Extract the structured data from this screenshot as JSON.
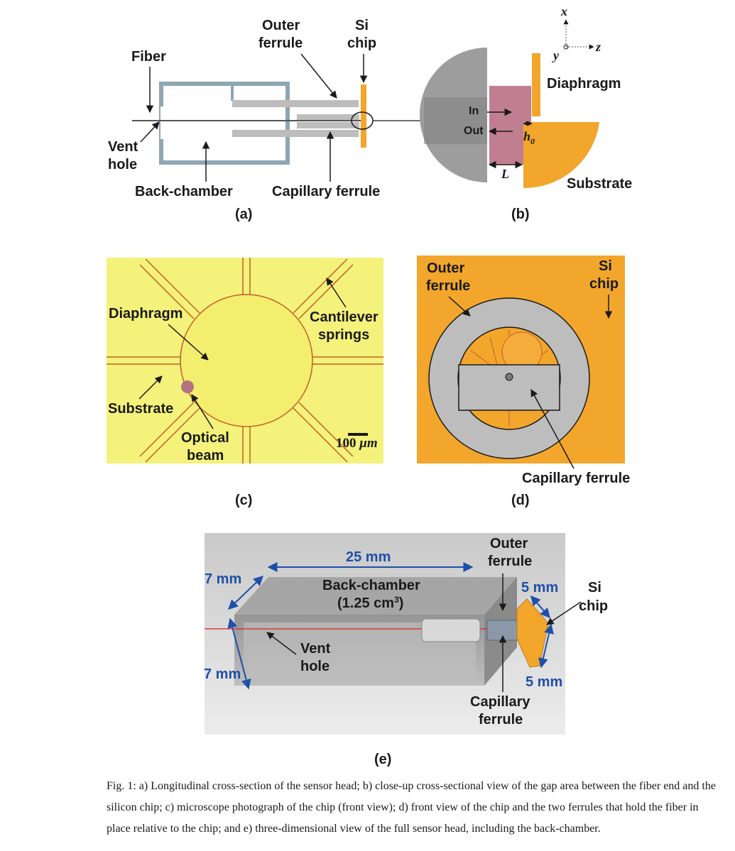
{
  "panel_a": {
    "fiber": "Fiber",
    "outer_ferrule": [
      "Outer",
      "ferrule"
    ],
    "si_chip": [
      "Si",
      "chip"
    ],
    "vent_hole": [
      "Vent",
      "hole"
    ],
    "back_chamber": "Back-chamber",
    "capillary_ferrule": "Capillary ferrule",
    "tag": "(a)"
  },
  "panel_b": {
    "axis_x": "x",
    "axis_y": "y",
    "axis_z": "z",
    "diaphragm": "Diaphragm",
    "in": "In",
    "out": "Out",
    "h0": "h",
    "h0_sub": "0",
    "gap": "L",
    "substrate": "Substrate",
    "tag": "(b)"
  },
  "panel_c": {
    "diaphragm": "Diaphragm",
    "cantilever_springs": [
      "Cantilever",
      "springs"
    ],
    "substrate": "Substrate",
    "optical_beam": [
      "Optical",
      "beam"
    ],
    "scale_value": "100 ",
    "scale_unit": "μm",
    "tag": "(c)"
  },
  "panel_d": {
    "outer_ferrule": [
      "Outer",
      "ferrule"
    ],
    "si_chip": [
      "Si",
      "chip"
    ],
    "capillary_ferrule": "Capillary ferrule",
    "tag": "(d)"
  },
  "panel_e": {
    "length": "25 mm",
    "height": "7 mm",
    "depth": "7 mm",
    "back_chamber": "Back-chamber",
    "volume_open": "(1.25 cm",
    "volume_sup": "3",
    "volume_close": ")",
    "outer_ferrule": [
      "Outer",
      "ferrule"
    ],
    "chip_width": "5 mm",
    "chip_height": "5 mm",
    "si_chip": [
      "Si",
      "chip"
    ],
    "vent_hole": [
      "Vent",
      "hole"
    ],
    "capillary_ferrule": [
      "Capillary",
      "ferrule"
    ],
    "tag": "(e)"
  },
  "caption": "Fig. 1: a) Longitudinal cross-section of the sensor head; b) close-up cross-sectional view of the gap area between the fiber end and the silicon chip; c) microscope photograph of the chip (front view); d) front view of the chip and the two ferrules that hold the fiber in place relative to the chip; and e) three-dimensional view of the full sensor head, including the back-chamber.",
  "colors": {
    "gold": "#f2a62c",
    "ferrule_gray": "#bdbdbd",
    "chamber_blue": "#8fa6b3",
    "chip_yellow": "#f4f27a",
    "gap_pink": "#c07f90",
    "dimension_blue": "#1f4fa8"
  }
}
